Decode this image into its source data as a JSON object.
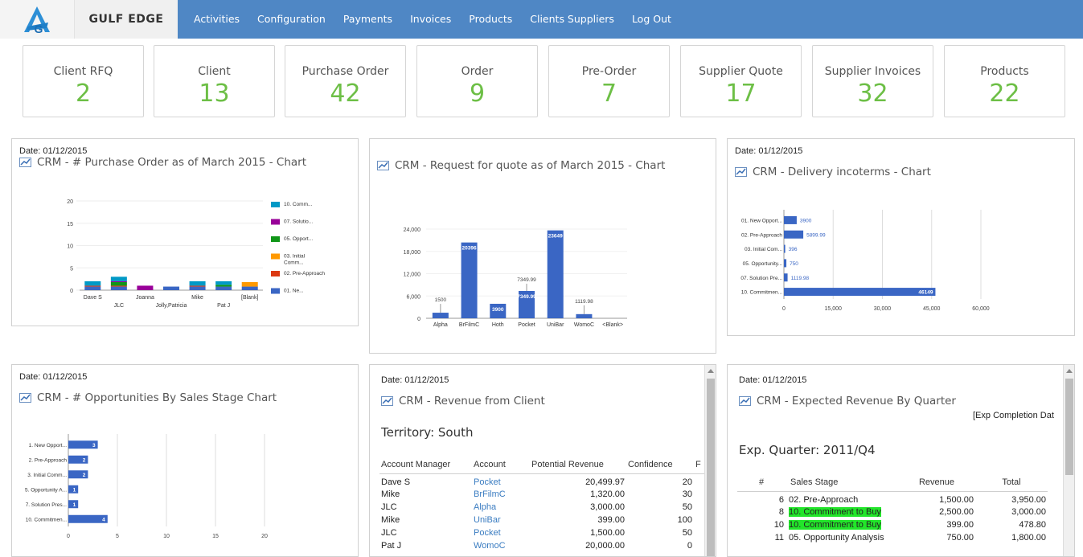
{
  "nav": {
    "brand": "GULF EDGE",
    "items": [
      "Activities",
      "Configuration",
      "Payments",
      "Invoices",
      "Products",
      "Clients Suppliers",
      "Log Out"
    ],
    "bg_color": "#4f87c5"
  },
  "kpis": [
    {
      "label": "Client RFQ",
      "value": "2"
    },
    {
      "label": "Client",
      "value": "13"
    },
    {
      "label": "Purchase Order",
      "value": "42"
    },
    {
      "label": "Order",
      "value": "9"
    },
    {
      "label": "Pre-Order",
      "value": "7"
    },
    {
      "label": "Supplier Quote",
      "value": "17"
    },
    {
      "label": "Supplier Invoices",
      "value": "32"
    },
    {
      "label": "Products",
      "value": "22"
    }
  ],
  "panels": {
    "po": {
      "date": "Date: 01/12/2015",
      "title": "CRM - # Purchase Order as of March 2015 - Chart",
      "chart_data": {
        "type": "bar",
        "stacked": true,
        "categories": [
          "Dave S",
          "JLC",
          "Joanna",
          "Jolly,Patricia",
          "Mike",
          "Pat J",
          "[Blank]"
        ],
        "ylim": [
          0,
          20
        ],
        "yticks": [
          "0",
          "5",
          "10",
          "15",
          "20"
        ],
        "series": [
          {
            "name": "01. Ne...",
            "color": "#3a66c4",
            "values": [
              0.8,
              0.8,
              0,
              0.8,
              0.8,
              0.8,
              0.8
            ]
          },
          {
            "name": "02. Pre-Approach",
            "color": "#dc3912",
            "values": [
              0.2,
              0.2,
              0,
              0,
              0.2,
              0,
              0
            ]
          },
          {
            "name": "03. Initial Comm...",
            "color": "#ff9900",
            "values": [
              0,
              0,
              0,
              0,
              0,
              0,
              1
            ]
          },
          {
            "name": "05. Opport...",
            "color": "#109618",
            "values": [
              0,
              0.8,
              0,
              0,
              0,
              0.4,
              0
            ]
          },
          {
            "name": "07. Solutio...",
            "color": "#990099",
            "values": [
              0,
              0.2,
              1.0,
              0,
              0,
              0,
              0
            ]
          },
          {
            "name": "10. Comm...",
            "color": "#0099c6",
            "values": [
              1.0,
              1.0,
              0,
              0,
              1.0,
              0.8,
              0
            ]
          }
        ],
        "legend": [
          "10. Comm...",
          "07. Solutio...",
          "05. Opport...",
          "03. Initial Comm...",
          "02. Pre-Approach",
          "01. Ne..."
        ]
      }
    },
    "rfq": {
      "title": "CRM - Request for quote as of March 2015 - Chart",
      "chart_data": {
        "type": "bar",
        "categories": [
          "Alpha",
          "BrFilmC",
          "Hoth",
          "Pocket",
          "UniBar",
          "WomoC",
          "<Blank>"
        ],
        "values": [
          1500,
          20396,
          3900,
          7349.99,
          23649,
          1119.98,
          0
        ],
        "value_labels": [
          "1500",
          "20396",
          "3900",
          "7349.99",
          "23649",
          "1119.98",
          ""
        ],
        "ylim": [
          0,
          24000
        ],
        "yticks": [
          "0",
          "6,000",
          "12,000",
          "18,000",
          "24,000"
        ],
        "color": "#3a66c4"
      }
    },
    "inco": {
      "date": "Date: 01/12/2015",
      "title": "CRM - Delivery incoterms - Chart",
      "chart_data": {
        "type": "bar",
        "orientation": "horizontal",
        "categories": [
          "01. New Opport...",
          "02. Pre-Approach",
          "03. Initial Com...",
          "05. Opportunity...",
          "07. Solution Pre...",
          "10. Commitmen..."
        ],
        "values": [
          3900,
          5899.99,
          396,
          750,
          1119.98,
          46149
        ],
        "value_labels": [
          "3900",
          "5899.99",
          "396",
          "750",
          "1119.98",
          "46149"
        ],
        "xlim": [
          0,
          60000
        ],
        "xticks": [
          "0",
          "15,000",
          "30,000",
          "45,000",
          "60,000"
        ],
        "color": "#3a66c4"
      }
    },
    "opp": {
      "date": "Date: 01/12/2015",
      "title": "CRM - # Opportunities By Sales Stage Chart",
      "chart_data": {
        "type": "bar",
        "orientation": "horizontal",
        "categories": [
          "1. New Opport...",
          "2. Pre-Approach",
          "3. Initial Comm...",
          "5. Opportunity A...",
          "7. Solution Pres...",
          "10. Commitmen..."
        ],
        "values": [
          3,
          2,
          2,
          1,
          1,
          4
        ],
        "value_labels": [
          "3",
          "2",
          "2",
          "1",
          "1",
          "4"
        ],
        "xlim": [
          0,
          20
        ],
        "xticks": [
          "0",
          "5",
          "10",
          "15",
          "20"
        ],
        "color": "#3a66c4"
      }
    },
    "rev": {
      "date": "Date: 01/12/2015",
      "title": "CRM - Revenue from Client",
      "territory": "Territory: South",
      "headers": [
        "Account Manager",
        "Account",
        "Potential Revenue",
        "Confidence",
        "F"
      ],
      "rows": [
        [
          "Dave S",
          "Pocket",
          "20,499.97",
          "20"
        ],
        [
          "Mike",
          "BrFilmC",
          "1,320.00",
          "30"
        ],
        [
          "JLC",
          "Alpha",
          "3,000.00",
          "50"
        ],
        [
          "Mike",
          "UniBar",
          "399.00",
          "100"
        ],
        [
          "JLC",
          "Pocket",
          "1,500.00",
          "50"
        ],
        [
          "Pat J",
          "WomoC",
          "20,000.00",
          "0"
        ]
      ]
    },
    "exp": {
      "date": "Date: 01/12/2015",
      "title": "CRM - Expected Revenue By Quarter",
      "corner_label": "[Exp Completion Dat",
      "quarter": "Exp. Quarter: 2011/Q4",
      "headers": [
        "#",
        "Sales Stage",
        "Revenue",
        "Total"
      ],
      "rows": [
        {
          "n": "6",
          "stage": "02. Pre-Approach",
          "revenue": "1,500.00",
          "total": "3,950.00",
          "hl": false
        },
        {
          "n": "8",
          "stage": "10. Commitment to Buy",
          "revenue": "2,500.00",
          "total": "3,000.00",
          "hl": true
        },
        {
          "n": "10",
          "stage": "10. Commitment to Buy",
          "revenue": "399.00",
          "total": "478.80",
          "hl": true
        },
        {
          "n": "11",
          "stage": "05. Opportunity Analysis",
          "revenue": "750.00",
          "total": "1,800.00",
          "hl": false
        }
      ]
    }
  }
}
